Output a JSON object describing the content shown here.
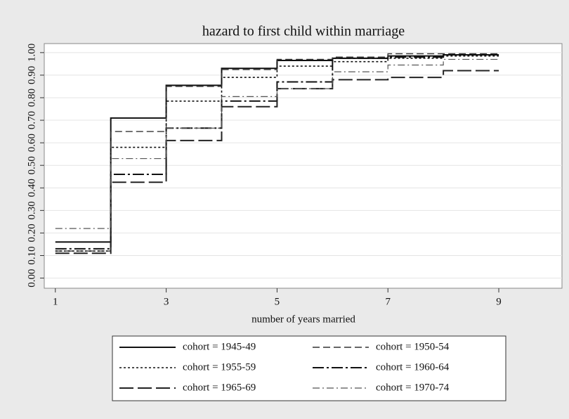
{
  "chart_data": {
    "type": "step",
    "title": "hazard to first child within marriage",
    "x_label": "number of years married",
    "x": [
      1,
      2,
      3,
      4,
      5,
      6,
      7,
      8,
      9
    ],
    "series": [
      {
        "name": "cohort = 1945-49",
        "color": "#111111",
        "dash": "solid",
        "values": [
          0.16,
          0.71,
          0.855,
          0.93,
          0.965,
          0.975,
          0.985,
          0.99,
          0.99
        ]
      },
      {
        "name": "cohort = 1950-54",
        "color": "#333333",
        "dash": "dash",
        "values": [
          0.12,
          0.65,
          0.85,
          0.925,
          0.97,
          0.98,
          0.995,
          0.995,
          0.995
        ]
      },
      {
        "name": "cohort = 1955-59",
        "color": "#111111",
        "dash": "dot",
        "values": [
          0.12,
          0.58,
          0.785,
          0.89,
          0.94,
          0.96,
          0.975,
          0.985,
          0.985
        ]
      },
      {
        "name": "cohort = 1960-64",
        "color": "#111111",
        "dash": "longdashdot",
        "values": [
          0.13,
          0.46,
          0.665,
          0.785,
          0.87,
          0.975,
          0.98,
          0.99,
          0.99
        ]
      },
      {
        "name": "cohort = 1965-69",
        "color": "#222222",
        "dash": "longdash",
        "values": [
          0.11,
          0.425,
          0.61,
          0.76,
          0.84,
          0.88,
          0.89,
          0.92,
          0.92
        ]
      },
      {
        "name": "cohort = 1970-74",
        "color": "#555555",
        "dash": "dashdot",
        "values": [
          0.22,
          0.53,
          0.665,
          0.805,
          0.84,
          0.915,
          0.945,
          0.97,
          0.97
        ]
      }
    ],
    "xlim": [
      0.8,
      10.14
    ],
    "ylim": [
      -0.045,
      1.04
    ],
    "xticks": [
      1,
      3,
      5,
      7,
      9
    ],
    "yticks": [
      {
        "value": 0,
        "label": "0.00"
      },
      {
        "value": 0.1,
        "label": "0.10"
      },
      {
        "value": 0.2,
        "label": "0.20"
      },
      {
        "value": 0.3,
        "label": "0.30"
      },
      {
        "value": 0.4,
        "label": "0.40"
      },
      {
        "value": 0.5,
        "label": "0.50"
      },
      {
        "value": 0.6,
        "label": "0.60"
      },
      {
        "value": 0.7,
        "label": "0.70"
      },
      {
        "value": 0.8,
        "label": "0.80"
      },
      {
        "value": 0.9,
        "label": "0.90"
      },
      {
        "value": 1,
        "label": "1.00"
      }
    ],
    "grid": true,
    "legend": "bottom"
  }
}
